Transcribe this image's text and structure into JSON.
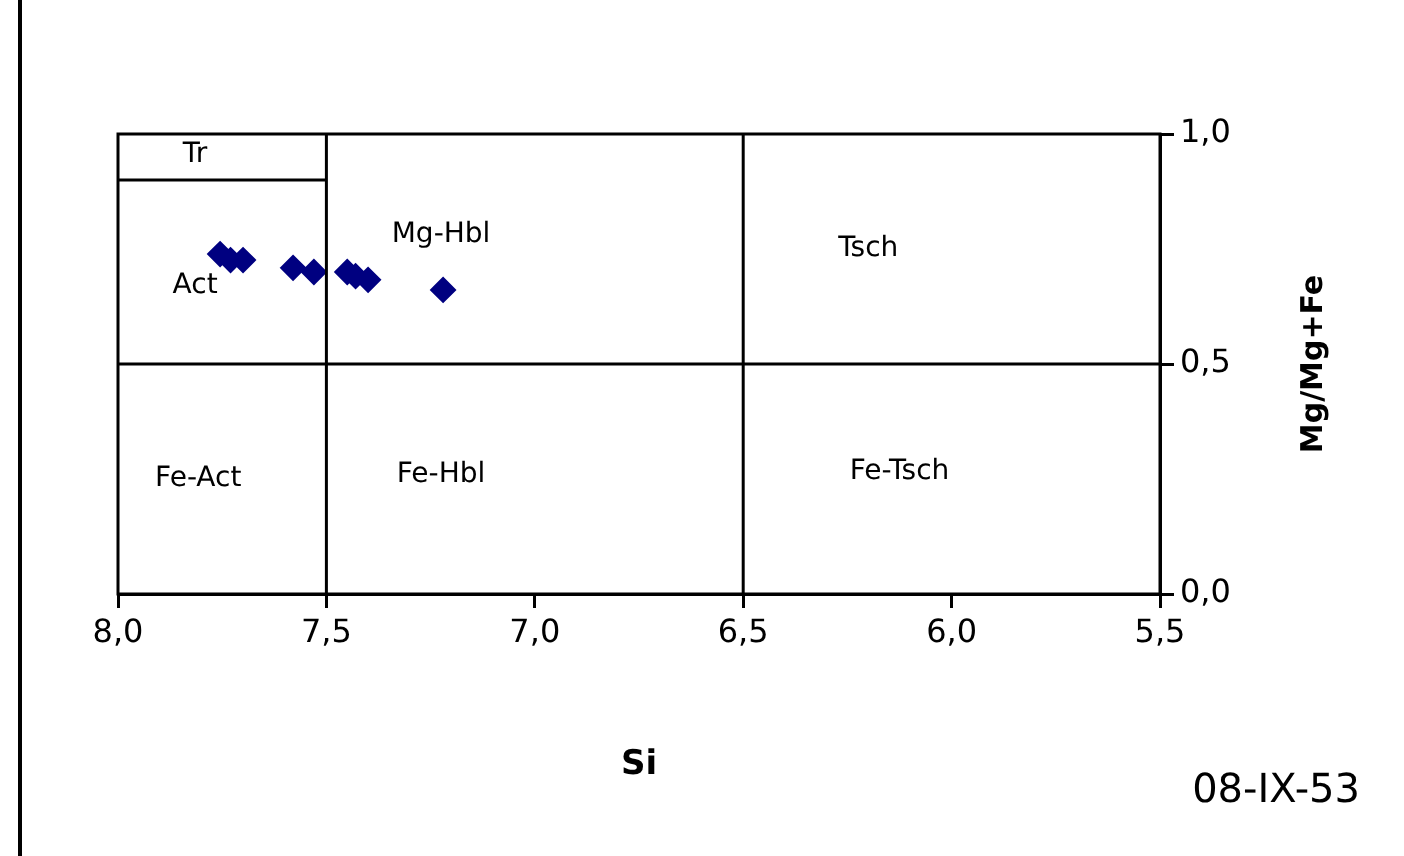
{
  "chart_data": {
    "type": "scatter",
    "xlabel": "Si",
    "ylabel": "Mg/Mg+Fe",
    "series": [
      {
        "color": "#000080",
        "marker": "diamond",
        "x": [
          7.755,
          7.73,
          7.7,
          7.58,
          7.53,
          7.45,
          7.43,
          7.4,
          7.22
        ],
        "values": [
          0.739,
          0.726,
          0.726,
          0.709,
          0.7,
          0.7,
          0.691,
          0.683,
          0.661
        ]
      },
      {
        "type": "line",
        "color": "#000000",
        "marker": "none",
        "x": [
          8,
          7.5
        ],
        "values": [
          0.9,
          0.9
        ]
      }
    ],
    "xlim": [
      8,
      5.5
    ],
    "ylim": [
      0,
      1
    ],
    "xticks": [
      {
        "value": 8,
        "label": "8,0"
      },
      {
        "value": 7.5,
        "label": "7,5"
      },
      {
        "value": 7,
        "label": "7,0"
      },
      {
        "value": 6.5,
        "label": "6,5"
      },
      {
        "value": 6,
        "label": "6,0"
      },
      {
        "value": 5.5,
        "label": "5,5"
      }
    ],
    "yticks": [
      {
        "value": 0,
        "label": "0,0"
      },
      {
        "value": 0.5,
        "label": "0,5"
      },
      {
        "value": 1,
        "label": "1,0"
      }
    ],
    "ref_lines": [
      {
        "axis": "x",
        "value": 7.5,
        "color": "#000000"
      },
      {
        "axis": "x",
        "value": 6.5,
        "color": "#000000"
      },
      {
        "axis": "y",
        "value": 0.5,
        "color": "#000000"
      }
    ],
    "annotations": [
      "Tr",
      "Act",
      "Mg-Hbl",
      "Tsch",
      "Fe-Act",
      "Fe-Hbl",
      "Fe-Tsch",
      "08-IX-53"
    ],
    "grid": false,
    "legend": false
  }
}
